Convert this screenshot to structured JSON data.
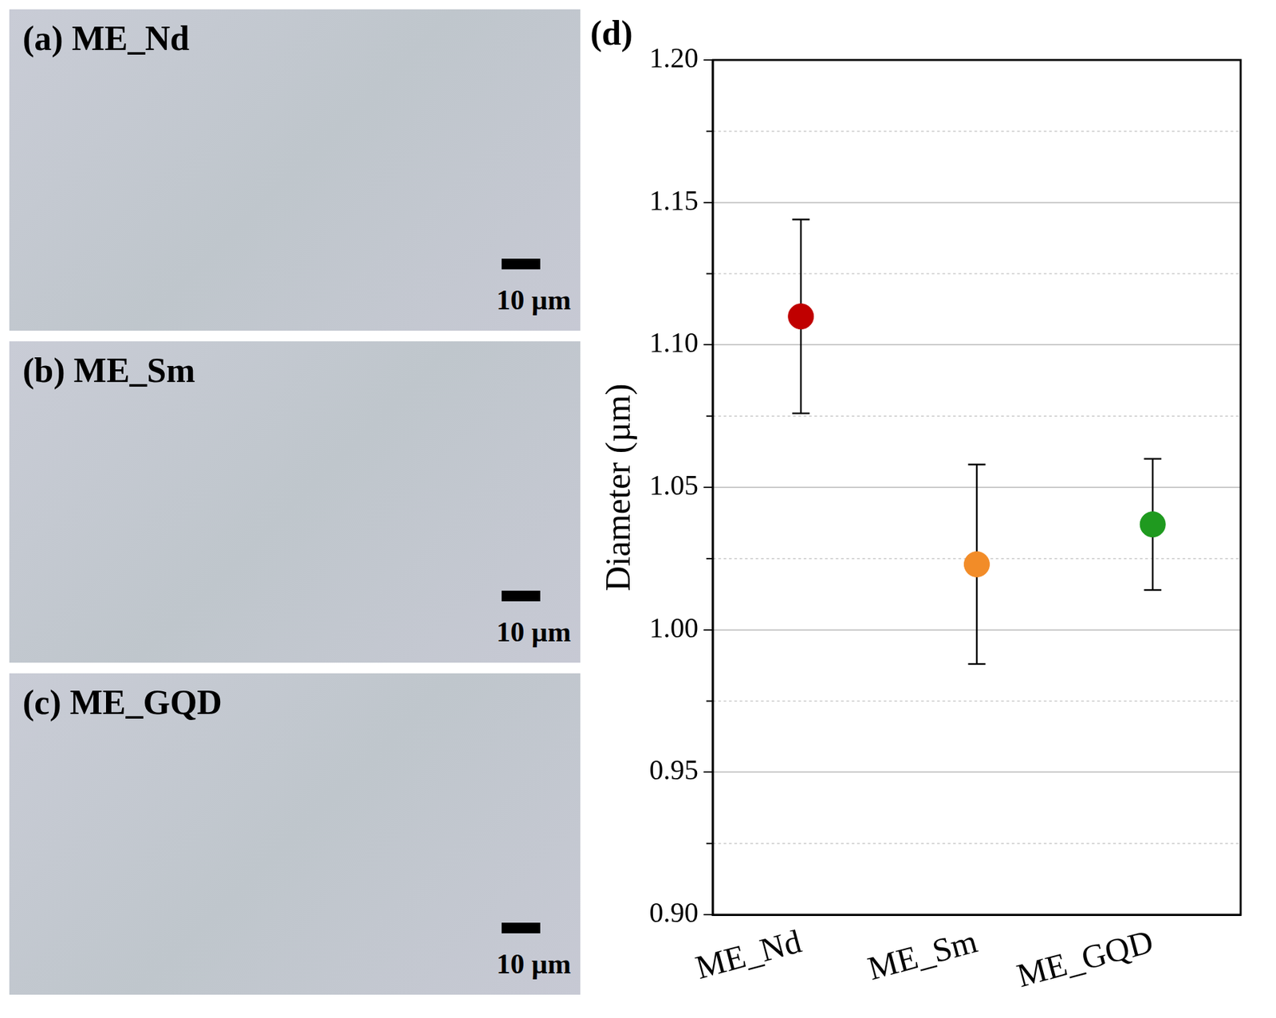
{
  "panels": [
    {
      "label": "(a) ME_Nd",
      "scale_bar": "10 µm"
    },
    {
      "label": "(b) ME_Sm",
      "scale_bar": "10 µm"
    },
    {
      "label": "(c) ME_GQD",
      "scale_bar": "10 µm"
    }
  ],
  "chart_panel_label": "(d)",
  "chart_data": {
    "type": "scatter",
    "y_label": "Diameter (µm)",
    "categories": [
      "ME_Nd",
      "ME_Sm",
      "ME_GQD"
    ],
    "values": [
      1.11,
      1.023,
      1.037
    ],
    "errors": [
      0.034,
      0.035,
      0.023
    ],
    "colors": [
      "#c00000",
      "#f28c28",
      "#1f9a1f"
    ],
    "marker": "circle",
    "ylim": [
      0.9,
      1.2
    ],
    "yticks": [
      {
        "value": 0.9,
        "label": "0.90"
      },
      {
        "value": 0.95,
        "label": "0.95"
      },
      {
        "value": 1.0,
        "label": "1.00"
      },
      {
        "value": 1.05,
        "label": "1.05"
      },
      {
        "value": 1.1,
        "label": "1.10"
      },
      {
        "value": 1.15,
        "label": "1.15"
      },
      {
        "value": 1.2,
        "label": "1.20"
      }
    ],
    "grid": true
  }
}
